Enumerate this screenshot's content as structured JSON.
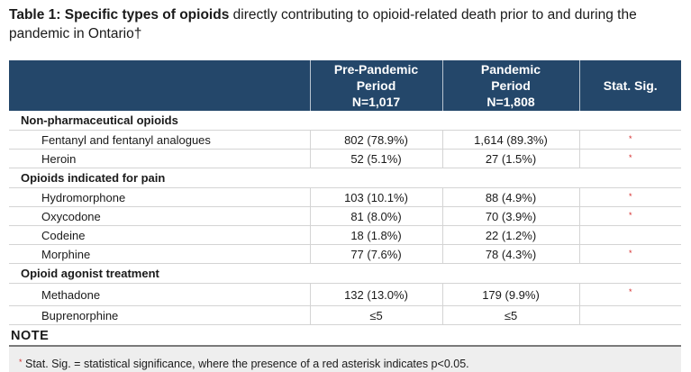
{
  "caption": {
    "bold": "Table 1: Specific types of opioids",
    "rest": " directly contributing to opioid-related death prior to and during the pandemic in Ontario†"
  },
  "headers": {
    "pre": [
      "Pre-Pandemic",
      "Period",
      "N=1,017"
    ],
    "pandemic": [
      "Pandemic",
      "Period",
      "N=1,808"
    ],
    "sig": "Stat. Sig."
  },
  "sections": [
    {
      "title": "Non-pharmaceutical opioids",
      "rows": [
        {
          "label": "Fentanyl and fentanyl analogues",
          "pre": "802 (78.9%)",
          "pandemic": "1,614 (89.3%)",
          "sig": "*"
        },
        {
          "label": "Heroin",
          "pre": "52 (5.1%)",
          "pandemic": "27 (1.5%)",
          "sig": "*"
        }
      ]
    },
    {
      "title": "Opioids indicated for pain",
      "rows": [
        {
          "label": "Hydromorphone",
          "pre": "103 (10.1%)",
          "pandemic": "88 (4.9%)",
          "sig": "*"
        },
        {
          "label": "Oxycodone",
          "pre": "81 (8.0%)",
          "pandemic": "70 (3.9%)",
          "sig": "*"
        },
        {
          "label": "Codeine",
          "pre": "18 (1.8%)",
          "pandemic": "22 (1.2%)",
          "sig": ""
        },
        {
          "label": "Morphine",
          "pre": "77 (7.6%)",
          "pandemic": "78 (4.3%)",
          "sig": "*"
        }
      ]
    },
    {
      "title": "Opioid agonist treatment",
      "rows": [
        {
          "label": "Methadone",
          "pre": "132 (13.0%)",
          "pandemic": "179 (9.9%)",
          "sig": "*"
        },
        {
          "label": "Buprenorphine",
          "pre": "≤5",
          "pandemic": "≤5",
          "sig": ""
        }
      ]
    }
  ],
  "note": {
    "title": "NOTE",
    "asterisk": "*",
    "text": " Stat. Sig. = statistical significance, where the presence of a red asterisk indicates p<0.05."
  },
  "colors": {
    "header_bg": "#24476a",
    "asterisk": "#d42a2a",
    "note_bg": "#eeeeee"
  }
}
